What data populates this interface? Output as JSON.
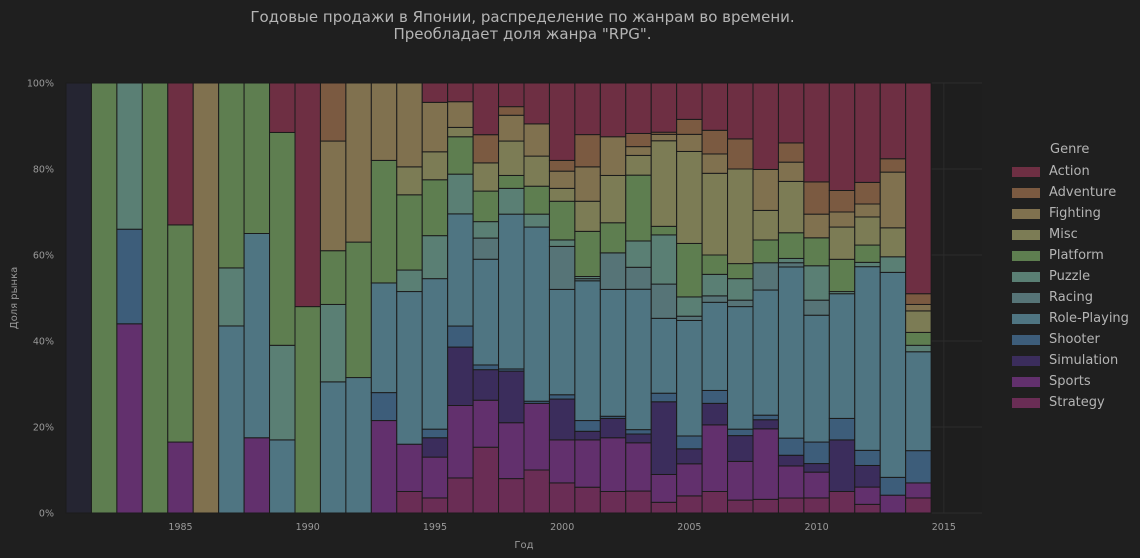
{
  "title_line1": "Годовые продажи в Японии, распределение по жанрам во времени.",
  "title_line2": "Преобладает доля жанра \"RPG\".",
  "legend_title": "Genre",
  "colors": {
    "Action": "#6e2f43",
    "Adventure": "#7b5a41",
    "Fighting": "#80714f",
    "Misc": "#7c7c55",
    "Platform": "#5e7e50",
    "Puzzle": "#5a7f74",
    "Racing": "#567477",
    "Role-Playing": "#4f7582",
    "Shooter": "#3d5d7a",
    "Simulation": "#3b2d5c",
    "Sports": "#62306d",
    "Strategy": "#6a2d55"
  },
  "chart_data": {
    "type": "bar",
    "stacked": true,
    "title": "Годовые продажи в Японии, распределение по жанрам во времени.\nПреобладает доля жанра \"RPG\".",
    "xlabel": "Год",
    "ylabel": "Доля рынка",
    "xlim": [
      1980.5,
      2016.5
    ],
    "ylim": [
      0,
      100
    ],
    "x_ticks": [
      1985,
      1990,
      1995,
      2000,
      2005,
      2010,
      2015
    ],
    "y_ticks": [
      "0%",
      "20%",
      "40%",
      "60%",
      "80%",
      "100%"
    ],
    "grid": true,
    "legend_position": "right",
    "genre_order": [
      "Strategy",
      "Sports",
      "Simulation",
      "Shooter",
      "Role-Playing",
      "Racing",
      "Puzzle",
      "Platform",
      "Misc",
      "Fighting",
      "Adventure",
      "Action"
    ],
    "years": [
      {
        "year": 1981,
        "Strategy": 0,
        "Sports": 0,
        "Simulation": 0,
        "Shooter": 0,
        "Role-Playing": 0,
        "Racing": 0,
        "Puzzle": 0,
        "Platform": 0,
        "Misc": 0,
        "Fighting": 0,
        "Adventure": 0,
        "Action": 0
      },
      {
        "year": 1982,
        "Strategy": 0,
        "Sports": 0,
        "Simulation": 0,
        "Shooter": 0,
        "Role-Playing": 0,
        "Racing": 0,
        "Puzzle": 0,
        "Platform": 100,
        "Misc": 0,
        "Fighting": 0,
        "Adventure": 0,
        "Action": 0
      },
      {
        "year": 1983,
        "Strategy": 0,
        "Sports": 44,
        "Simulation": 0,
        "Shooter": 22,
        "Role-Playing": 0,
        "Racing": 0,
        "Puzzle": 34,
        "Platform": 0,
        "Misc": 0,
        "Fighting": 0,
        "Adventure": 0,
        "Action": 0
      },
      {
        "year": 1984,
        "Strategy": 0,
        "Sports": 0,
        "Simulation": 0,
        "Shooter": 0,
        "Role-Playing": 0,
        "Racing": 0,
        "Puzzle": 0,
        "Platform": 100,
        "Misc": 0,
        "Fighting": 0,
        "Adventure": 0,
        "Action": 0
      },
      {
        "year": 1985,
        "Strategy": 0,
        "Sports": 16.5,
        "Simulation": 0,
        "Shooter": 0,
        "Role-Playing": 0,
        "Racing": 0,
        "Puzzle": 0,
        "Platform": 50.5,
        "Misc": 0,
        "Fighting": 0,
        "Adventure": 0,
        "Action": 33
      },
      {
        "year": 1986,
        "Strategy": 0,
        "Sports": 0,
        "Simulation": 0,
        "Shooter": 0,
        "Role-Playing": 0,
        "Racing": 0,
        "Puzzle": 0,
        "Platform": 0,
        "Misc": 0,
        "Fighting": 100,
        "Adventure": 0,
        "Action": 0
      },
      {
        "year": 1987,
        "Strategy": 0,
        "Sports": 0,
        "Simulation": 0,
        "Shooter": 0,
        "Role-Playing": 43.5,
        "Racing": 0,
        "Puzzle": 13.5,
        "Platform": 43,
        "Misc": 0,
        "Fighting": 0,
        "Adventure": 0,
        "Action": 0
      },
      {
        "year": 1988,
        "Strategy": 0,
        "Sports": 17.5,
        "Simulation": 0,
        "Shooter": 0,
        "Role-Playing": 47.5,
        "Racing": 0,
        "Puzzle": 0,
        "Platform": 35,
        "Misc": 0,
        "Fighting": 0,
        "Adventure": 0,
        "Action": 0
      },
      {
        "year": 1989,
        "Strategy": 0,
        "Sports": 0,
        "Simulation": 0,
        "Shooter": 0,
        "Role-Playing": 17,
        "Racing": 0,
        "Puzzle": 22,
        "Platform": 49.5,
        "Misc": 0,
        "Fighting": 0,
        "Adventure": 0,
        "Action": 11.5
      },
      {
        "year": 1990,
        "Strategy": 0,
        "Sports": 0,
        "Simulation": 0,
        "Shooter": 0,
        "Role-Playing": 0,
        "Racing": 0,
        "Puzzle": 0,
        "Platform": 48,
        "Misc": 0,
        "Fighting": 0,
        "Adventure": 0,
        "Action": 52
      },
      {
        "year": 1991,
        "Strategy": 0,
        "Sports": 0,
        "Simulation": 0,
        "Shooter": 0,
        "Role-Playing": 30.5,
        "Racing": 0,
        "Puzzle": 18,
        "Platform": 12.5,
        "Misc": 0,
        "Fighting": 25.5,
        "Adventure": 13.5,
        "Action": 0
      },
      {
        "year": 1992,
        "Strategy": 0,
        "Sports": 0,
        "Simulation": 0,
        "Shooter": 0,
        "Role-Playing": 31.5,
        "Racing": 0,
        "Puzzle": 0,
        "Platform": 31.5,
        "Misc": 0,
        "Fighting": 37,
        "Adventure": 0,
        "Action": 0
      },
      {
        "year": 1993,
        "Strategy": 0,
        "Sports": 21.5,
        "Simulation": 0,
        "Shooter": 6.5,
        "Role-Playing": 25.5,
        "Racing": 0,
        "Puzzle": 0,
        "Platform": 28.5,
        "Misc": 0,
        "Fighting": 18,
        "Adventure": 0,
        "Action": 0
      },
      {
        "year": 1994,
        "Strategy": 5,
        "Sports": 11,
        "Simulation": 0,
        "Shooter": 0,
        "Role-Playing": 35.5,
        "Racing": 0,
        "Puzzle": 5,
        "Platform": 17.5,
        "Misc": 6.5,
        "Fighting": 19.5,
        "Adventure": 0,
        "Action": 0
      },
      {
        "year": 1995,
        "Strategy": 3.5,
        "Sports": 9.5,
        "Simulation": 4.5,
        "Shooter": 2,
        "Role-Playing": 35,
        "Racing": 0,
        "Puzzle": 10,
        "Platform": 13,
        "Misc": 6.5,
        "Fighting": 11.5,
        "Adventure": 0,
        "Action": 4.5
      },
      {
        "year": 1996,
        "Strategy": 7.5,
        "Sports": 15.5,
        "Simulation": 12.5,
        "Shooter": 4.5,
        "Role-Playing": 24,
        "Racing": 0,
        "Puzzle": 8.5,
        "Platform": 8,
        "Misc": 2,
        "Fighting": 5.5,
        "Adventure": 0,
        "Action": 4
      },
      {
        "year": 1997,
        "Strategy": 14,
        "Sports": 10,
        "Simulation": 6.5,
        "Shooter": 1,
        "Role-Playing": 22.5,
        "Racing": 4.5,
        "Puzzle": 3.5,
        "Platform": 6.5,
        "Misc": 6,
        "Fighting": 0,
        "Adventure": 6,
        "Action": 11
      },
      {
        "year": 1998,
        "Strategy": 8,
        "Sports": 13,
        "Simulation": 12,
        "Shooter": 0.5,
        "Role-Playing": 36,
        "Racing": 0,
        "Puzzle": 6,
        "Platform": 3,
        "Misc": 8,
        "Fighting": 6,
        "Adventure": 2,
        "Action": 5.5
      },
      {
        "year": 1999,
        "Strategy": 10,
        "Sports": 15.5,
        "Simulation": 0,
        "Shooter": 0.5,
        "Role-Playing": 40.5,
        "Racing": 0,
        "Puzzle": 3,
        "Platform": 6.5,
        "Misc": 7,
        "Fighting": 7.5,
        "Adventure": 0,
        "Action": 9.5
      },
      {
        "year": 2000,
        "Strategy": 7,
        "Sports": 10,
        "Simulation": 9.5,
        "Shooter": 1,
        "Role-Playing": 24.5,
        "Racing": 10,
        "Puzzle": 1.5,
        "Platform": 9,
        "Misc": 3,
        "Fighting": 4,
        "Adventure": 2.5,
        "Action": 18
      },
      {
        "year": 2001,
        "Strategy": 6,
        "Sports": 11,
        "Simulation": 2,
        "Shooter": 2.5,
        "Role-Playing": 32.5,
        "Racing": 0.5,
        "Puzzle": 0.5,
        "Platform": 10.5,
        "Misc": 7,
        "Fighting": 8,
        "Adventure": 7.5,
        "Action": 12
      },
      {
        "year": 2002,
        "Strategy": 5,
        "Sports": 12.5,
        "Simulation": 4.5,
        "Shooter": 0.5,
        "Role-Playing": 29.5,
        "Racing": 8.5,
        "Puzzle": 0,
        "Platform": 7,
        "Misc": 11,
        "Fighting": 9,
        "Adventure": 0,
        "Action": 12.5
      },
      {
        "year": 2003,
        "Strategy": 5,
        "Sports": 11,
        "Simulation": 2,
        "Shooter": 1,
        "Role-Playing": 32,
        "Racing": 5,
        "Puzzle": 6,
        "Platform": 15,
        "Misc": 4.5,
        "Fighting": 2,
        "Adventure": 3,
        "Action": 11.5
      },
      {
        "year": 2004,
        "Strategy": 2.5,
        "Sports": 6.5,
        "Simulation": 17,
        "Shooter": 2,
        "Role-Playing": 17.5,
        "Racing": 8,
        "Puzzle": 11.5,
        "Platform": 2,
        "Misc": 20,
        "Fighting": 1.5,
        "Adventure": 0.5,
        "Action": 11.5
      },
      {
        "year": 2005,
        "Strategy": 4,
        "Sports": 7.5,
        "Simulation": 3.5,
        "Shooter": 3,
        "Role-Playing": 27,
        "Racing": 1,
        "Puzzle": 4.5,
        "Platform": 12.5,
        "Misc": 21.5,
        "Fighting": 4,
        "Adventure": 3.5,
        "Action": 8.5
      },
      {
        "year": 2006,
        "Strategy": 5,
        "Sports": 15.5,
        "Simulation": 5,
        "Shooter": 3,
        "Role-Playing": 20.5,
        "Racing": 1.5,
        "Puzzle": 5,
        "Platform": 4.5,
        "Misc": 19,
        "Fighting": 4.5,
        "Adventure": 5.5,
        "Action": 11
      },
      {
        "year": 2007,
        "Strategy": 3,
        "Sports": 9,
        "Simulation": 6,
        "Shooter": 1.5,
        "Role-Playing": 28.5,
        "Racing": 1.5,
        "Puzzle": 5,
        "Platform": 3.5,
        "Misc": 22,
        "Fighting": 0,
        "Adventure": 7,
        "Action": 13
      },
      {
        "year": 2008,
        "Strategy": 3,
        "Sports": 15.5,
        "Simulation": 2,
        "Shooter": 1,
        "Role-Playing": 27.5,
        "Racing": 6,
        "Puzzle": 0,
        "Platform": 5,
        "Misc": 6.5,
        "Fighting": 9,
        "Adventure": 0,
        "Action": 19
      },
      {
        "year": 2009,
        "Strategy": 3.5,
        "Sports": 7.5,
        "Simulation": 2.5,
        "Shooter": 4,
        "Role-Playing": 40,
        "Racing": 1,
        "Puzzle": 1,
        "Platform": 6,
        "Misc": 12,
        "Fighting": 4.5,
        "Adventure": 4.5,
        "Action": 14
      },
      {
        "year": 2010,
        "Strategy": 3.5,
        "Sports": 6,
        "Simulation": 2,
        "Shooter": 5,
        "Role-Playing": 29.5,
        "Racing": 3.5,
        "Puzzle": 8,
        "Platform": 6.5,
        "Misc": 0,
        "Fighting": 5.5,
        "Adventure": 7.5,
        "Action": 23
      },
      {
        "year": 2011,
        "Strategy": 5,
        "Sports": 0,
        "Simulation": 12,
        "Shooter": 5,
        "Role-Playing": 29,
        "Racing": 0,
        "Puzzle": 0.5,
        "Platform": 7.5,
        "Misc": 7.5,
        "Fighting": 3.5,
        "Adventure": 5,
        "Action": 25
      },
      {
        "year": 2012,
        "Strategy": 2,
        "Sports": 4,
        "Simulation": 5,
        "Shooter": 3.5,
        "Role-Playing": 42.5,
        "Racing": 0,
        "Puzzle": 1,
        "Platform": 4,
        "Misc": 6.5,
        "Fighting": 3,
        "Adventure": 5,
        "Action": 23
      },
      {
        "year": 2013,
        "Strategy": 0,
        "Sports": 4,
        "Simulation": 0,
        "Shooter": 4,
        "Role-Playing": 46,
        "Racing": 0,
        "Puzzle": 3.5,
        "Platform": 0,
        "Misc": 6.5,
        "Fighting": 12.5,
        "Adventure": 3,
        "Action": 17
      },
      {
        "year": 2014,
        "Strategy": 3.5,
        "Sports": 3.5,
        "Simulation": 0,
        "Shooter": 7.5,
        "Role-Playing": 23,
        "Racing": 0,
        "Puzzle": 1.5,
        "Platform": 3,
        "Misc": 5,
        "Fighting": 1.5,
        "Adventure": 2.5,
        "Action": 49
      }
    ]
  }
}
